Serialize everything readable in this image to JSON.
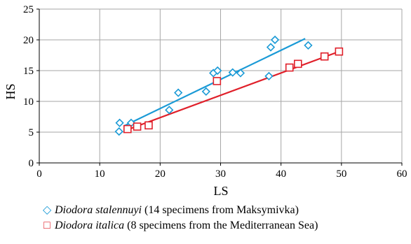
{
  "chart_data": {
    "type": "scatter",
    "xlabel": "LS",
    "ylabel": "HS",
    "xlim": [
      0,
      60
    ],
    "ylim": [
      0,
      25
    ],
    "xticks": [
      0,
      10,
      20,
      30,
      40,
      50,
      60
    ],
    "yticks": [
      0,
      5,
      10,
      15,
      20,
      25
    ],
    "grid": true,
    "legend_position": "bottom",
    "series": [
      {
        "name": "Diodora stalennuyi",
        "name_suffix": "(14 specimens from Maksymivka)",
        "marker": "diamond",
        "color": "#1a9ad6",
        "points": [
          [
            13.3,
            6.5
          ],
          [
            13.2,
            5.1
          ],
          [
            15.2,
            6.5
          ],
          [
            21.5,
            8.6
          ],
          [
            23.0,
            11.4
          ],
          [
            27.6,
            11.6
          ],
          [
            28.8,
            14.6
          ],
          [
            29.5,
            15.0
          ],
          [
            32.0,
            14.7
          ],
          [
            33.3,
            14.6
          ],
          [
            38.0,
            14.1
          ],
          [
            38.3,
            18.8
          ],
          [
            39.0,
            20.0
          ],
          [
            44.5,
            19.1
          ]
        ],
        "trendline": [
          [
            14.0,
            6.0
          ],
          [
            44.0,
            20.2
          ]
        ]
      },
      {
        "name": "Diodora italica",
        "name_suffix": "(8 specimens from the Mediterranean Sea)",
        "marker": "square",
        "color": "#e0202a",
        "points": [
          [
            14.6,
            5.5
          ],
          [
            16.2,
            5.9
          ],
          [
            18.1,
            6.1
          ],
          [
            29.4,
            13.3
          ],
          [
            41.4,
            15.5
          ],
          [
            42.8,
            16.1
          ],
          [
            47.2,
            17.3
          ],
          [
            49.6,
            18.1
          ]
        ],
        "trendline": [
          [
            14.6,
            5.4
          ],
          [
            49.6,
            18.1
          ]
        ]
      }
    ]
  }
}
